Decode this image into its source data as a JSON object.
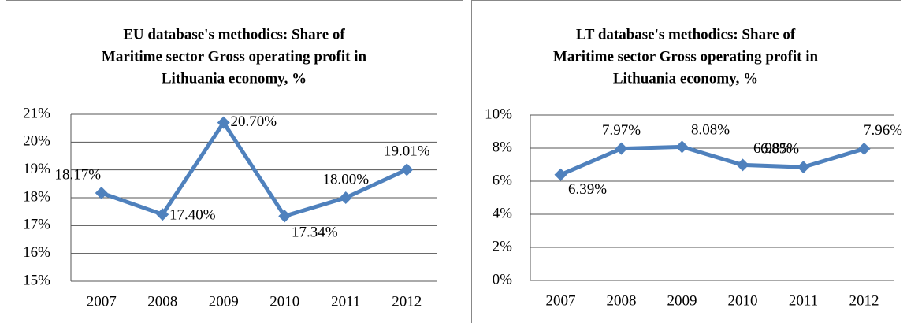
{
  "chart_data": [
    {
      "type": "line",
      "title": [
        "EU database's methodics: Share of",
        "Maritime sector Gross operating profit in",
        "Lithuania economy, %"
      ],
      "categories": [
        "2007",
        "2008",
        "2009",
        "2010",
        "2011",
        "2012"
      ],
      "series": [
        {
          "name": "Share",
          "color": "#4f81bd",
          "values": [
            18.17,
            17.4,
            20.7,
            17.34,
            18.0,
            19.01
          ],
          "value_labels": [
            "18.17%",
            "17.40%",
            "20.70%",
            "17.34%",
            "18.00%",
            "19.01%"
          ]
        }
      ],
      "ylim": [
        15,
        21
      ],
      "yticks": [
        {
          "value": 15,
          "label": "15%"
        },
        {
          "value": 16,
          "label": "16%"
        },
        {
          "value": 17,
          "label": "17%"
        },
        {
          "value": 18,
          "label": "18%"
        },
        {
          "value": 19,
          "label": "19%"
        },
        {
          "value": 20,
          "label": "20%"
        },
        {
          "value": 21,
          "label": "21%"
        }
      ],
      "grid": true
    },
    {
      "type": "line",
      "title": [
        "LT database's methodics: Share of",
        "Maritime sector Gross operating profit in",
        "Lithuania economy, %"
      ],
      "categories": [
        "2007",
        "2008",
        "2009",
        "2010",
        "2011",
        "2012"
      ],
      "series": [
        {
          "name": "Share",
          "color": "#4f81bd",
          "values": [
            6.39,
            7.97,
            8.08,
            6.98,
            6.85,
            7.96
          ],
          "value_labels": [
            "6.39%",
            "7.97%",
            "8.08%",
            "6.98%",
            "6.85%",
            "7.96%"
          ]
        }
      ],
      "ylim": [
        0,
        10
      ],
      "yticks": [
        {
          "value": 0,
          "label": "0%"
        },
        {
          "value": 2,
          "label": "2%"
        },
        {
          "value": 4,
          "label": "4%"
        },
        {
          "value": 6,
          "label": "6%"
        },
        {
          "value": 8,
          "label": "8%"
        },
        {
          "value": 10,
          "label": "10%"
        }
      ],
      "grid": true
    }
  ]
}
